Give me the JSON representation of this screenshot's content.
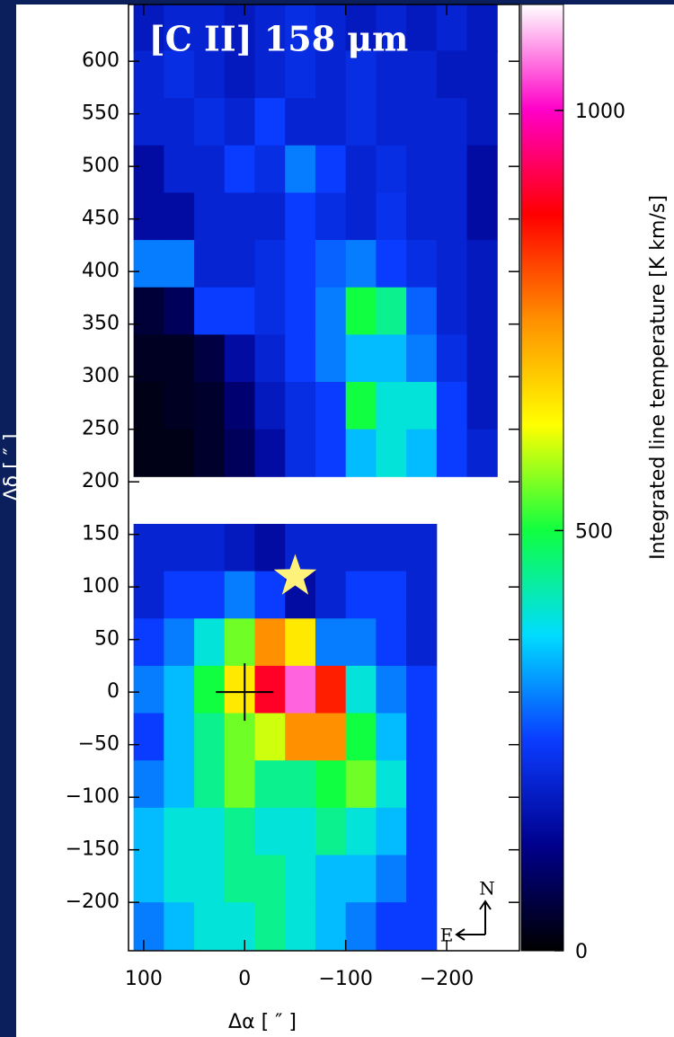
{
  "chart_data": {
    "type": "heatmap",
    "title": "[C II] 158 μm",
    "xlabel": "Δα [ ″ ]",
    "ylabel": "Δδ [ ″ ]",
    "xlim": [
      115,
      -272
    ],
    "ylim": [
      -246,
      654
    ],
    "xticks": [
      100,
      0,
      {
        "value": -100,
        "label": "−100"
      },
      {
        "value": -200,
        "label": "−200"
      }
    ],
    "yticks": [
      {
        "value": -200,
        "label": "−200"
      },
      {
        "value": -150,
        "label": "−150"
      },
      {
        "value": -100,
        "label": "−100"
      },
      {
        "value": -50,
        "label": "−50"
      },
      0,
      50,
      100,
      150,
      200,
      250,
      300,
      350,
      400,
      450,
      500,
      550,
      600
    ],
    "x_edges": [
      110,
      80,
      50,
      20,
      -10,
      -40,
      -70,
      -100,
      -130,
      -160,
      -190,
      -220,
      -250
    ],
    "y_edges": [
      655,
      610,
      565,
      520,
      475,
      430,
      385,
      340,
      295,
      250,
      205,
      160,
      115,
      70,
      25,
      -20,
      -65,
      -110,
      -155,
      -200,
      -245
    ],
    "values": [
      [
        180,
        200,
        200,
        180,
        200,
        220,
        200,
        180,
        200,
        180,
        200,
        180
      ],
      [
        200,
        220,
        200,
        180,
        200,
        220,
        200,
        220,
        200,
        200,
        180,
        180
      ],
      [
        200,
        200,
        220,
        200,
        250,
        200,
        200,
        220,
        200,
        200,
        200,
        180
      ],
      [
        150,
        200,
        200,
        250,
        220,
        300,
        250,
        200,
        220,
        200,
        200,
        150
      ],
      [
        150,
        150,
        200,
        200,
        200,
        250,
        220,
        200,
        230,
        200,
        200,
        150
      ],
      [
        300,
        300,
        200,
        200,
        220,
        250,
        280,
        300,
        250,
        220,
        200,
        180
      ],
      [
        50,
        80,
        250,
        250,
        220,
        250,
        300,
        500,
        450,
        280,
        200,
        180
      ],
      [
        30,
        30,
        60,
        150,
        200,
        250,
        300,
        350,
        350,
        300,
        220,
        180
      ],
      [
        20,
        30,
        40,
        100,
        180,
        220,
        250,
        500,
        400,
        400,
        250,
        180
      ],
      [
        20,
        20,
        40,
        80,
        150,
        220,
        250,
        350,
        400,
        350,
        250,
        200
      ],
      [
        null,
        null,
        null,
        null,
        null,
        null,
        null,
        null,
        null,
        null,
        null,
        null
      ],
      [
        200,
        200,
        200,
        180,
        150,
        200,
        200,
        200,
        200,
        200,
        null,
        null
      ],
      [
        200,
        250,
        250,
        300,
        250,
        150,
        200,
        250,
        250,
        200,
        null,
        null
      ],
      [
        250,
        300,
        400,
        550,
        750,
        650,
        300,
        300,
        250,
        200,
        null,
        null
      ],
      [
        300,
        350,
        500,
        650,
        900,
        1050,
        850,
        400,
        300,
        250,
        null,
        null
      ],
      [
        250,
        350,
        450,
        550,
        600,
        750,
        750,
        500,
        350,
        250,
        null,
        null
      ],
      [
        300,
        350,
        450,
        550,
        450,
        450,
        500,
        550,
        400,
        250,
        null,
        null
      ],
      [
        350,
        400,
        400,
        450,
        400,
        400,
        450,
        400,
        350,
        250,
        null,
        null
      ],
      [
        350,
        400,
        400,
        450,
        450,
        400,
        350,
        350,
        300,
        250,
        null,
        null
      ],
      [
        300,
        350,
        400,
        400,
        450,
        400,
        350,
        300,
        250,
        250,
        null,
        null
      ]
    ],
    "colormap": [
      "#000000",
      "#00008c",
      "#0a3cff",
      "#00dcff",
      "#10ff40",
      "#ffff00",
      "#ff9000",
      "#ff0000",
      "#ff00c8",
      "#ffffff"
    ],
    "colorbar": {
      "label": "Integrated line temperature [K km/s]",
      "lim": [
        0,
        1126
      ],
      "ticks": [
        0,
        500,
        1000
      ]
    },
    "markers": [
      {
        "type": "star",
        "x": -50,
        "y": 110,
        "color": "#fff27a"
      },
      {
        "type": "cross",
        "x": 0,
        "y": 0,
        "color": "#000000"
      }
    ],
    "compass": {
      "north": "N",
      "east": "E"
    }
  }
}
